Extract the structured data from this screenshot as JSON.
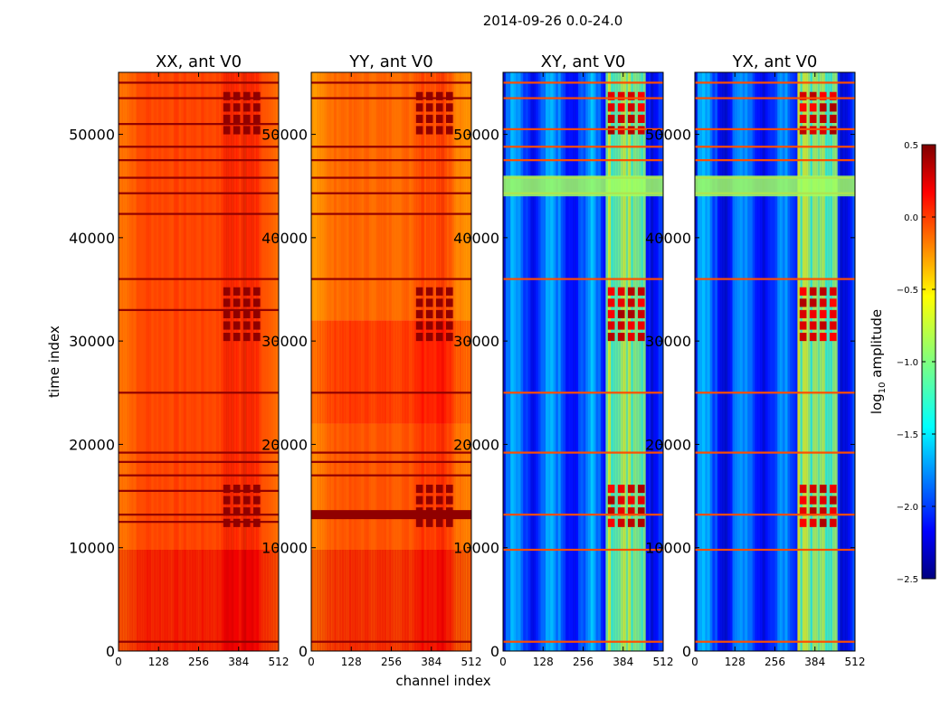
{
  "figure": {
    "suptitle": "2014-09-26 0.0-24.0",
    "ylabel": "time index",
    "xlabel": "channel index"
  },
  "chart_data": {
    "type": "heatmap",
    "x_ticks": [
      0,
      128,
      256,
      384,
      512
    ],
    "x_range": [
      0,
      512
    ],
    "y_ticks": [
      0,
      10000,
      20000,
      30000,
      40000,
      50000
    ],
    "y_range": [
      0,
      56000
    ],
    "rfi_band_channels": [
      330,
      460
    ],
    "panels": [
      {
        "title": "XX, ant V0",
        "palette": "high",
        "base_log_amp": -0.05,
        "time_segments": [
          {
            "from": 0,
            "to": 9800,
            "log_amp": 0.2
          },
          {
            "from": 9800,
            "to": 56000,
            "log_amp": -0.1
          }
        ],
        "hot_rows": [
          900,
          12500,
          13200,
          15500,
          17000,
          18300,
          19200,
          25000,
          33000,
          36000,
          42300,
          44300,
          45800,
          47500,
          48800,
          51000,
          53500,
          55000
        ]
      },
      {
        "title": "YY, ant V0",
        "palette": "high",
        "base_log_amp": -0.15,
        "time_segments": [
          {
            "from": 0,
            "to": 9800,
            "log_amp": 0.2
          },
          {
            "from": 9800,
            "to": 22000,
            "log_amp": -0.1
          },
          {
            "from": 22000,
            "to": 32000,
            "log_amp": 0.05
          },
          {
            "from": 32000,
            "to": 56000,
            "log_amp": -0.2
          }
        ],
        "hot_rows": [
          900,
          13200,
          17000,
          18300,
          19200,
          25000,
          36000,
          42300,
          44300,
          45800,
          47500,
          48800,
          53500,
          55000
        ]
      },
      {
        "title": "XY, ant V0",
        "palette": "low",
        "base_log_amp": -1.9,
        "time_segments": [
          {
            "from": 0,
            "to": 56000,
            "log_amp": -1.9
          }
        ],
        "hot_rows": [
          900,
          9800,
          13200,
          19200,
          25000,
          36000,
          44300,
          45800,
          47500,
          48800,
          50500,
          53500,
          55000
        ]
      },
      {
        "title": "YX, ant V0",
        "palette": "low",
        "base_log_amp": -1.9,
        "time_segments": [
          {
            "from": 0,
            "to": 56000,
            "log_amp": -1.9
          }
        ],
        "hot_rows": [
          900,
          9800,
          13200,
          19200,
          25000,
          36000,
          44300,
          45800,
          47500,
          48800,
          50500,
          53500,
          55000
        ]
      }
    ],
    "colorbar": {
      "label_prefix": "log",
      "label_sub": "10",
      "label_suffix": " amplitude",
      "range": [
        -2.5,
        0.5
      ],
      "colormap": "jet",
      "ticks": [
        0.5,
        0.0,
        -0.5,
        -1.0,
        -1.5,
        -2.0,
        -2.5
      ],
      "tick_labels": [
        "0.5",
        "0.0",
        "−0.5",
        "−1.0",
        "−1.5",
        "−2.0",
        "−2.5"
      ]
    }
  }
}
